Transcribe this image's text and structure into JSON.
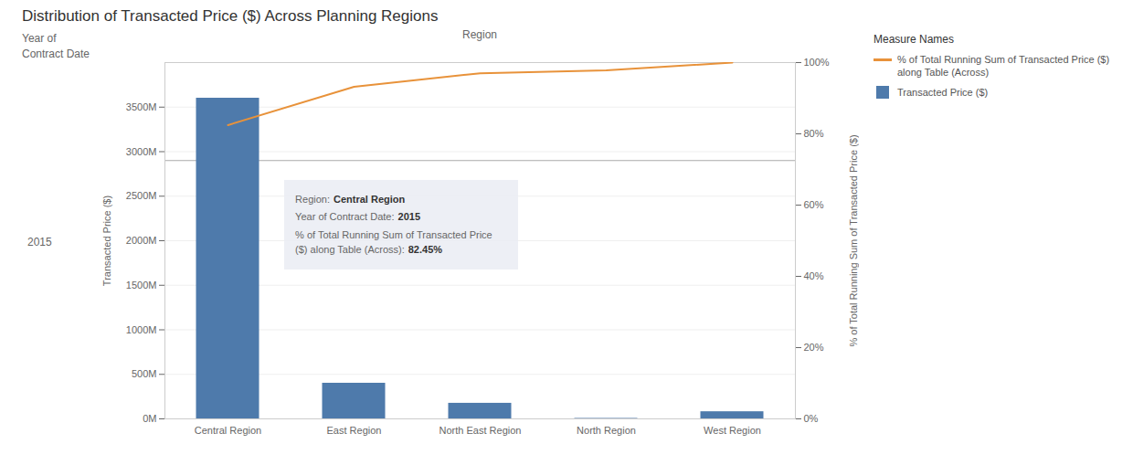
{
  "chart_data": {
    "type": "bar",
    "title": "Distribution of Transacted Price ($) Across Planning Regions",
    "xlabel": "Region",
    "ylabel": "Transacted Price ($)",
    "y2label": "% of Total Running Sum of Transacted Price ($)",
    "categories": [
      "Central Region",
      "East Region",
      "North East Region",
      "North Region",
      "West Region"
    ],
    "series": [
      {
        "name": "Transacted Price ($)",
        "type": "bar",
        "color": "#4e7aab",
        "values": [
          3600,
          400,
          175,
          5,
          80
        ]
      },
      {
        "name": "% of Total Running Sum of Transacted Price ($) along Table (Across)",
        "type": "line",
        "color": "#e8923a",
        "axis": "y2",
        "values": [
          82.45,
          93.2,
          97.0,
          97.8,
          100.0
        ]
      }
    ],
    "ylim": [
      0,
      4000
    ],
    "yticks": [
      {
        "value": 0,
        "label": "0M"
      },
      {
        "value": 500,
        "label": "500M"
      },
      {
        "value": 1000,
        "label": "1000M"
      },
      {
        "value": 1500,
        "label": "1500M"
      },
      {
        "value": 2000,
        "label": "2000M"
      },
      {
        "value": 2500,
        "label": "2500M"
      },
      {
        "value": 3000,
        "label": "3000M"
      },
      {
        "value": 3500,
        "label": "3500M"
      }
    ],
    "y2lim": [
      0,
      100
    ],
    "y2ticks": [
      {
        "value": 0,
        "label": "0%"
      },
      {
        "value": 20,
        "label": "20%"
      },
      {
        "value": 40,
        "label": "40%"
      },
      {
        "value": 60,
        "label": "60%"
      },
      {
        "value": 80,
        "label": "80%"
      },
      {
        "value": 100,
        "label": "100%"
      }
    ],
    "grid": true,
    "legend": "upper right",
    "legend_title": "Measure Names",
    "reference_line": 2900,
    "row_header": "Year of\nContract Date",
    "row_label": "2015",
    "tooltip": [
      {
        "label": "Region:",
        "value": "Central Region"
      },
      {
        "label": "Year of Contract Date:",
        "value": "2015"
      },
      {
        "label": "% of Total Running Sum of Transacted Price ($) along Table (Across):",
        "value": "82.45%"
      }
    ]
  }
}
